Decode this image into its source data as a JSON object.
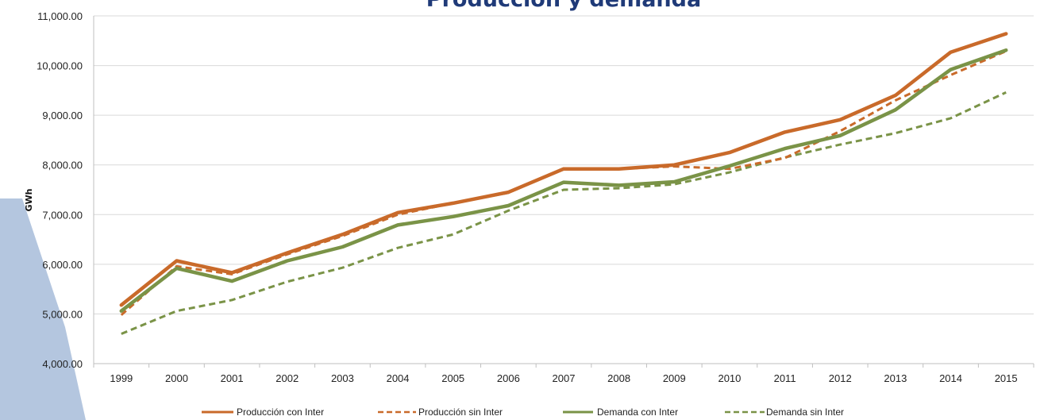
{
  "colors": {
    "title": "#1f3a78",
    "decor_band": "#b4c6df",
    "grid": "#d9d9d9",
    "axis": "#bfbfbf"
  },
  "chart_data": {
    "type": "line",
    "title": "Producción y demanda",
    "xlabel": "",
    "ylabel": "GWh",
    "ylim": [
      4000,
      11000
    ],
    "yticks": [
      4000,
      5000,
      6000,
      7000,
      8000,
      9000,
      10000,
      11000
    ],
    "ytick_labels": [
      "4,000.00",
      "5,000.00",
      "6,000.00",
      "7,000.00",
      "8,000.00",
      "9,000.00",
      "10,000.00",
      "11,000.00"
    ],
    "grid": true,
    "legend_position": "bottom",
    "categories": [
      "1999",
      "2000",
      "2001",
      "2002",
      "2003",
      "2004",
      "2005",
      "2006",
      "2007",
      "2008",
      "2009",
      "2010",
      "2011",
      "2012",
      "2013",
      "2014",
      "2015"
    ],
    "series": [
      {
        "name": "Producción con Inter",
        "color": "#c96a2a",
        "dash": "solid",
        "width": "thick",
        "values": [
          5180,
          6070,
          5830,
          6230,
          6600,
          7040,
          7230,
          7450,
          7920,
          7920,
          8000,
          8250,
          8660,
          8910,
          9400,
          10270,
          10640
        ]
      },
      {
        "name": "Producción sin Inter",
        "color": "#c96a2a",
        "dash": "dashed",
        "width": "medium",
        "values": [
          4980,
          5960,
          5800,
          6200,
          6570,
          7000,
          7230,
          7440,
          7930,
          7920,
          7970,
          7920,
          8140,
          8680,
          9300,
          9810,
          10290
        ]
      },
      {
        "name": "Demanda con Inter",
        "color": "#7a9347",
        "dash": "solid",
        "width": "thick",
        "values": [
          5060,
          5920,
          5660,
          6070,
          6350,
          6790,
          6960,
          7180,
          7650,
          7590,
          7660,
          7980,
          8330,
          8590,
          9110,
          9920,
          10310
        ]
      },
      {
        "name": "Demanda sin Inter",
        "color": "#7a9347",
        "dash": "dashed",
        "width": "medium",
        "values": [
          4600,
          5060,
          5280,
          5650,
          5930,
          6330,
          6600,
          7080,
          7500,
          7530,
          7610,
          7850,
          8150,
          8410,
          8640,
          8940,
          9460
        ]
      }
    ]
  }
}
